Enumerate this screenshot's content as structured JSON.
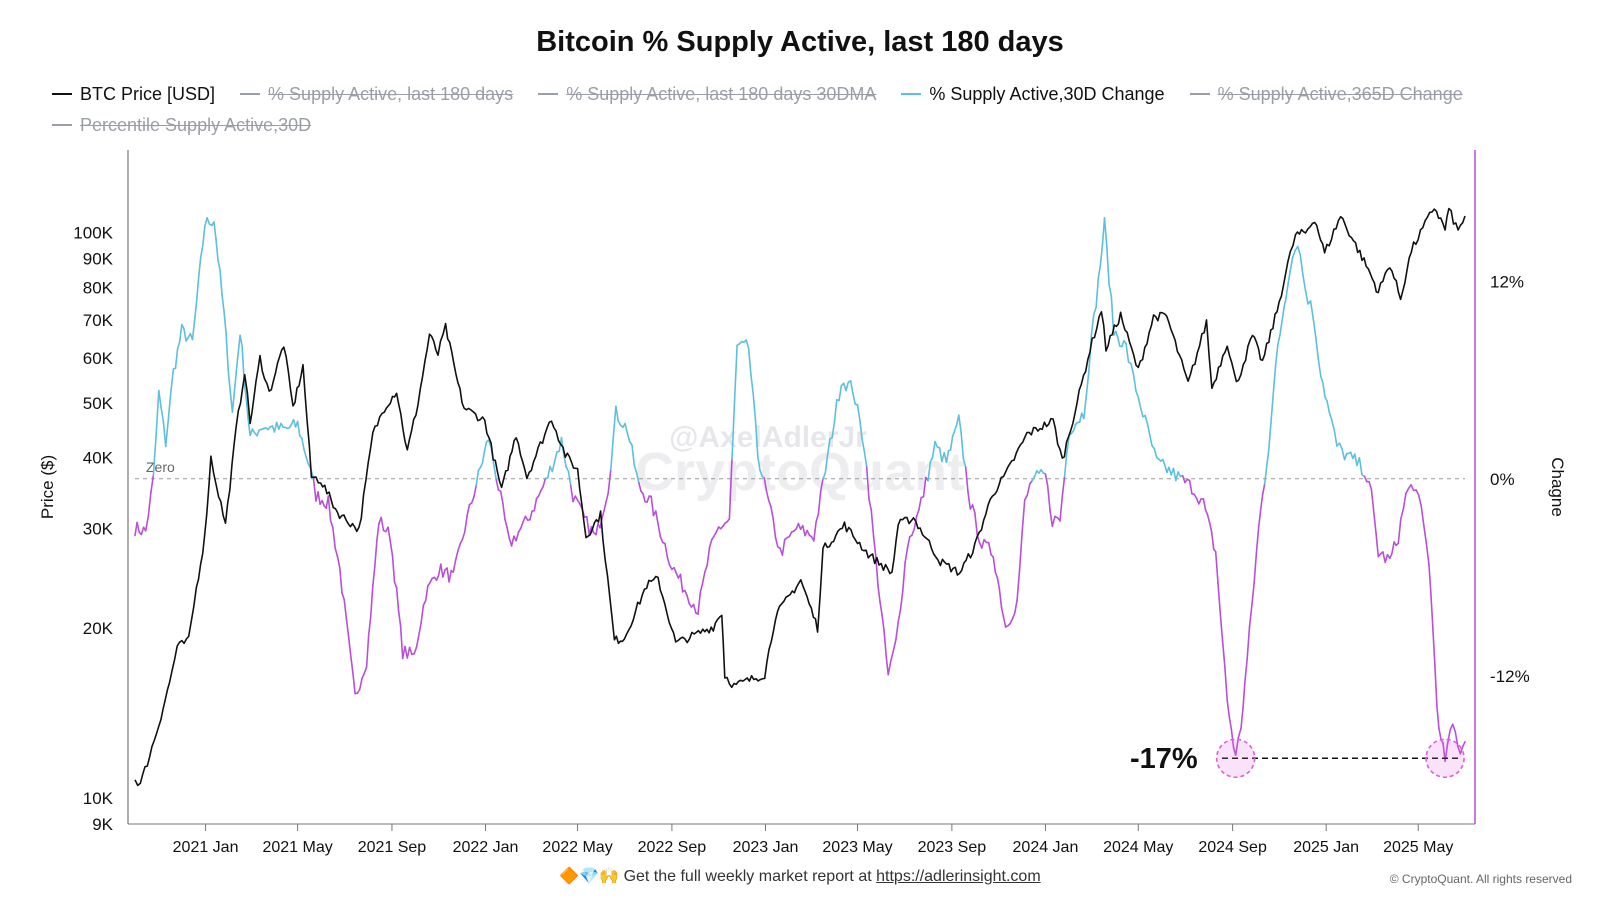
{
  "title": "Bitcoin % Supply Active, last 180 days",
  "legend": [
    {
      "label": "BTC Price [USD]",
      "color": "#111111",
      "active": true
    },
    {
      "label": "% Supply Active, last 180 days",
      "color": "#9a9ea6",
      "active": false
    },
    {
      "label": "% Supply Active, last 180 days 30DMA",
      "color": "#9a9ea6",
      "active": false
    },
    {
      "label": "% Supply Active,30D Change",
      "color": "#5bc0de",
      "active": true
    },
    {
      "label": "% Supply Active,365D Change",
      "color": "#9a9ea6",
      "active": false
    },
    {
      "label": "Percentile Supply Active,30D",
      "color": "#9a9ea6",
      "active": false
    }
  ],
  "axes": {
    "left_label": "Price ($)",
    "right_label": "Chagne",
    "left_ticks": [
      "100K",
      "90K",
      "80K",
      "70K",
      "60K",
      "50K",
      "40K",
      "30K",
      "20K",
      "10K",
      "9K"
    ],
    "right_ticks": [
      "12%",
      "0%",
      "-12%"
    ],
    "x_ticks": [
      "2021 Jan",
      "2021 May",
      "2021 Sep",
      "2022 Jan",
      "2022 May",
      "2022 Sep",
      "2023 Jan",
      "2023 May",
      "2023 Sep",
      "2024 Jan",
      "2024 May",
      "2024 Sep",
      "2025 Jan",
      "2025 May"
    ]
  },
  "zero_label": "Zero",
  "annotation": "-17%",
  "watermark": {
    "handle": "@AxelAdlerJr",
    "brand": "CryptoQuant"
  },
  "footer": {
    "emoji": "🔶💎🙌",
    "text": "Get the full weekly market report at",
    "link": "https://adlerinsight.com"
  },
  "copyright": "© CryptoQuant. All rights reserved",
  "colors": {
    "price": "#111111",
    "change_pos": "#5bc0de",
    "change_neg": "#b84fdc",
    "axis_right": "#b84fdc",
    "grid_zero": "#9a9a9a",
    "annotation_circle": "#e35ce0"
  },
  "chart_data": {
    "type": "line",
    "title": "Bitcoin % Supply Active, last 180 days",
    "x_range": [
      "2020-10-01",
      "2025-07-01"
    ],
    "y_left": {
      "label": "Price ($)",
      "scale": "log",
      "range": [
        9000,
        140000
      ]
    },
    "y_right": {
      "label": "Chagne",
      "range": [
        -21,
        20
      ],
      "unit": "%"
    },
    "legend_placement": "top-left",
    "grid": false,
    "series": [
      {
        "name": "BTC Price [USD]",
        "axis": "left",
        "points": [
          [
            "2020-10-01",
            10800
          ],
          [
            "2020-10-08",
            10600
          ],
          [
            "2020-10-20",
            11900
          ],
          [
            "2020-11-01",
            13500
          ],
          [
            "2020-11-15",
            16000
          ],
          [
            "2020-11-25",
            18500
          ],
          [
            "2020-12-10",
            19000
          ],
          [
            "2020-12-20",
            23500
          ],
          [
            "2020-12-31",
            29000
          ],
          [
            "2021-01-08",
            40000
          ],
          [
            "2021-01-15",
            36000
          ],
          [
            "2021-01-27",
            30500
          ],
          [
            "2021-02-10",
            45000
          ],
          [
            "2021-02-21",
            57000
          ],
          [
            "2021-02-28",
            46000
          ],
          [
            "2021-03-13",
            60000
          ],
          [
            "2021-03-25",
            52000
          ],
          [
            "2021-04-13",
            63500
          ],
          [
            "2021-04-25",
            49000
          ],
          [
            "2021-05-08",
            58000
          ],
          [
            "2021-05-19",
            37000
          ],
          [
            "2021-05-31",
            36500
          ],
          [
            "2021-06-22",
            32000
          ],
          [
            "2021-07-20",
            29800
          ],
          [
            "2021-08-07",
            44000
          ],
          [
            "2021-08-22",
            49000
          ],
          [
            "2021-09-07",
            52500
          ],
          [
            "2021-09-21",
            41000
          ],
          [
            "2021-10-05",
            50000
          ],
          [
            "2021-10-20",
            66000
          ],
          [
            "2021-10-31",
            61000
          ],
          [
            "2021-11-10",
            68000
          ],
          [
            "2021-11-26",
            54000
          ],
          [
            "2021-12-04",
            49000
          ],
          [
            "2021-12-31",
            46500
          ],
          [
            "2022-01-22",
            35000
          ],
          [
            "2022-02-10",
            44000
          ],
          [
            "2022-02-24",
            37000
          ],
          [
            "2022-03-28",
            47000
          ],
          [
            "2022-04-15",
            40500
          ],
          [
            "2022-05-01",
            38000
          ],
          [
            "2022-05-12",
            29000
          ],
          [
            "2022-05-31",
            31700
          ],
          [
            "2022-06-18",
            19000
          ],
          [
            "2022-07-01",
            19200
          ],
          [
            "2022-07-30",
            23800
          ],
          [
            "2022-08-14",
            24400
          ],
          [
            "2022-09-06",
            18800
          ],
          [
            "2022-09-30",
            19400
          ],
          [
            "2022-10-25",
            20100
          ],
          [
            "2022-11-05",
            21300
          ],
          [
            "2022-11-09",
            16500
          ],
          [
            "2022-11-21",
            15800
          ],
          [
            "2022-12-31",
            16550
          ],
          [
            "2023-01-14",
            21000
          ],
          [
            "2023-02-16",
            24300
          ],
          [
            "2023-03-10",
            20000
          ],
          [
            "2023-03-17",
            27500
          ],
          [
            "2023-04-14",
            30400
          ],
          [
            "2023-05-15",
            27000
          ],
          [
            "2023-06-15",
            25000
          ],
          [
            "2023-06-23",
            30500
          ],
          [
            "2023-07-13",
            31300
          ],
          [
            "2023-08-17",
            26200
          ],
          [
            "2023-09-11",
            25000
          ],
          [
            "2023-10-01",
            27900
          ],
          [
            "2023-10-24",
            34500
          ],
          [
            "2023-11-10",
            37300
          ],
          [
            "2023-12-08",
            44000
          ],
          [
            "2024-01-11",
            46500
          ],
          [
            "2024-01-23",
            39500
          ],
          [
            "2024-02-14",
            51800
          ],
          [
            "2024-02-28",
            62000
          ],
          [
            "2024-03-14",
            73000
          ],
          [
            "2024-03-20",
            62500
          ],
          [
            "2024-04-08",
            71500
          ],
          [
            "2024-05-01",
            57000
          ],
          [
            "2024-05-21",
            71000
          ],
          [
            "2024-06-07",
            71200
          ],
          [
            "2024-07-05",
            54000
          ],
          [
            "2024-07-29",
            69500
          ],
          [
            "2024-08-05",
            53000
          ],
          [
            "2024-08-25",
            64000
          ],
          [
            "2024-09-06",
            53900
          ],
          [
            "2024-09-27",
            65700
          ],
          [
            "2024-10-10",
            59000
          ],
          [
            "2024-10-29",
            72700
          ],
          [
            "2024-11-12",
            88000
          ],
          [
            "2024-11-22",
            99000
          ],
          [
            "2024-12-05",
            100000
          ],
          [
            "2024-12-17",
            106000
          ],
          [
            "2024-12-30",
            92000
          ],
          [
            "2025-01-20",
            107000
          ],
          [
            "2025-02-25",
            86000
          ],
          [
            "2025-03-10",
            78500
          ],
          [
            "2025-03-25",
            88000
          ],
          [
            "2025-04-08",
            76500
          ],
          [
            "2025-04-22",
            93000
          ],
          [
            "2025-05-22",
            111000
          ],
          [
            "2025-06-05",
            101500
          ],
          [
            "2025-06-10",
            110000
          ],
          [
            "2025-06-22",
            100500
          ],
          [
            "2025-07-01",
            107000
          ]
        ]
      },
      {
        "name": "% Supply Active,30D Change",
        "axis": "right",
        "note": "rendered blue where >= 0 and purple where < 0",
        "points": [
          [
            "2020-10-01",
            -3.0
          ],
          [
            "2020-10-15",
            -3.2
          ],
          [
            "2020-10-25",
            0.0
          ],
          [
            "2020-11-01",
            5.2
          ],
          [
            "2020-11-10",
            2.2
          ],
          [
            "2020-11-20",
            6.5
          ],
          [
            "2020-12-01",
            9.0
          ],
          [
            "2020-12-15",
            8.3
          ],
          [
            "2020-12-31",
            15.5
          ],
          [
            "2021-01-12",
            15.8
          ],
          [
            "2021-01-25",
            10.0
          ],
          [
            "2021-02-05",
            4.0
          ],
          [
            "2021-02-15",
            9.0
          ],
          [
            "2021-02-28",
            2.5
          ],
          [
            "2021-03-15",
            3.2
          ],
          [
            "2021-04-15",
            3.0
          ],
          [
            "2021-05-01",
            3.3
          ],
          [
            "2021-05-15",
            1.0
          ],
          [
            "2021-05-25",
            -1.0
          ],
          [
            "2021-06-10",
            -1.5
          ],
          [
            "2021-06-25",
            -5.5
          ],
          [
            "2021-07-15",
            -13.3
          ],
          [
            "2021-07-30",
            -11.0
          ],
          [
            "2021-08-15",
            -2.5
          ],
          [
            "2021-08-30",
            -3.5
          ],
          [
            "2021-09-15",
            -10.5
          ],
          [
            "2021-09-30",
            -10.8
          ],
          [
            "2021-10-15",
            -7.0
          ],
          [
            "2021-11-01",
            -5.5
          ],
          [
            "2021-11-20",
            -6.0
          ],
          [
            "2021-12-05",
            -3.0
          ],
          [
            "2021-12-20",
            -0.3
          ],
          [
            "2022-01-05",
            2.5
          ],
          [
            "2022-01-15",
            0.2
          ],
          [
            "2022-02-01",
            -4.0
          ],
          [
            "2022-02-25",
            -2.5
          ],
          [
            "2022-03-20",
            -0.2
          ],
          [
            "2022-04-10",
            2.3
          ],
          [
            "2022-04-25",
            -1.0
          ],
          [
            "2022-05-10",
            -2.5
          ],
          [
            "2022-05-25",
            -3.6
          ],
          [
            "2022-06-10",
            -0.5
          ],
          [
            "2022-06-20",
            4.0
          ],
          [
            "2022-07-05",
            3.0
          ],
          [
            "2022-07-20",
            -0.5
          ],
          [
            "2022-08-05",
            -1.5
          ],
          [
            "2022-09-01",
            -5.3
          ],
          [
            "2022-09-15",
            -6.5
          ],
          [
            "2022-10-05",
            -8.0
          ],
          [
            "2022-10-20",
            -4.5
          ],
          [
            "2022-11-01",
            -3.0
          ],
          [
            "2022-11-15",
            -2.5
          ],
          [
            "2022-11-25",
            8.0
          ],
          [
            "2022-12-10",
            8.0
          ],
          [
            "2022-12-22",
            1.5
          ],
          [
            "2023-01-05",
            -1.5
          ],
          [
            "2023-01-20",
            -4.5
          ],
          [
            "2023-02-10",
            -3.0
          ],
          [
            "2023-03-05",
            -3.5
          ],
          [
            "2023-03-20",
            0.5
          ],
          [
            "2023-04-10",
            6.0
          ],
          [
            "2023-04-25",
            5.5
          ],
          [
            "2023-05-10",
            2.0
          ],
          [
            "2023-05-25",
            -5.0
          ],
          [
            "2023-06-10",
            -12.0
          ],
          [
            "2023-06-20",
            -10.0
          ],
          [
            "2023-07-05",
            -4.0
          ],
          [
            "2023-07-20",
            -2.0
          ],
          [
            "2023-08-10",
            2.0
          ],
          [
            "2023-08-25",
            1.0
          ],
          [
            "2023-09-10",
            3.5
          ],
          [
            "2023-09-25",
            -1.5
          ],
          [
            "2023-10-10",
            -4.0
          ],
          [
            "2023-10-25",
            -4.5
          ],
          [
            "2023-11-10",
            -9.0
          ],
          [
            "2023-11-25",
            -7.5
          ],
          [
            "2023-12-05",
            -1.5
          ],
          [
            "2023-12-15",
            0.0
          ],
          [
            "2024-01-01",
            0.2
          ],
          [
            "2024-01-10",
            -2.5
          ],
          [
            "2024-01-20",
            -2.5
          ],
          [
            "2024-02-01",
            3.0
          ],
          [
            "2024-02-20",
            4.0
          ],
          [
            "2024-03-01",
            8.5
          ],
          [
            "2024-03-10",
            12.0
          ],
          [
            "2024-03-18",
            15.5
          ],
          [
            "2024-03-30",
            9.0
          ],
          [
            "2024-04-15",
            8.0
          ],
          [
            "2024-04-25",
            6.0
          ],
          [
            "2024-05-10",
            3.5
          ],
          [
            "2024-05-25",
            1.0
          ],
          [
            "2024-06-10",
            0.5
          ],
          [
            "2024-06-25",
            0.0
          ],
          [
            "2024-07-10",
            -0.5
          ],
          [
            "2024-07-25",
            -1.5
          ],
          [
            "2024-08-10",
            -4.5
          ],
          [
            "2024-08-25",
            -13.5
          ],
          [
            "2024-09-05",
            -17.0
          ],
          [
            "2024-09-12",
            -15.0
          ],
          [
            "2024-09-20",
            -11.0
          ],
          [
            "2024-10-05",
            -3.0
          ],
          [
            "2024-10-18",
            2.0
          ],
          [
            "2024-10-30",
            8.0
          ],
          [
            "2024-11-15",
            13.0
          ],
          [
            "2024-11-25",
            14.5
          ],
          [
            "2024-12-05",
            11.5
          ],
          [
            "2024-12-15",
            10.0
          ],
          [
            "2024-12-25",
            6.5
          ],
          [
            "2025-01-05",
            4.0
          ],
          [
            "2025-01-15",
            2.0
          ],
          [
            "2025-01-25",
            1.5
          ],
          [
            "2025-02-10",
            1.0
          ],
          [
            "2025-02-20",
            0.5
          ],
          [
            "2025-03-01",
            -1.0
          ],
          [
            "2025-03-10",
            -4.5
          ],
          [
            "2025-03-25",
            -5.0
          ],
          [
            "2025-04-05",
            -3.5
          ],
          [
            "2025-04-15",
            -1.0
          ],
          [
            "2025-04-25",
            -0.3
          ],
          [
            "2025-05-05",
            -2.0
          ],
          [
            "2025-05-15",
            -5.0
          ],
          [
            "2025-05-28",
            -15.5
          ],
          [
            "2025-06-05",
            -17.0
          ],
          [
            "2025-06-15",
            -15.0
          ],
          [
            "2025-06-25",
            -16.5
          ],
          [
            "2025-07-01",
            -16.0
          ]
        ]
      }
    ],
    "reference_lines": [
      {
        "axis": "right",
        "value": 0,
        "label": "Zero",
        "style": "dashed"
      },
      {
        "axis": "right",
        "value": -17,
        "label": "-17%",
        "style": "dashed",
        "marked_dates": [
          "2024-09-05",
          "2025-06-05"
        ]
      }
    ]
  }
}
